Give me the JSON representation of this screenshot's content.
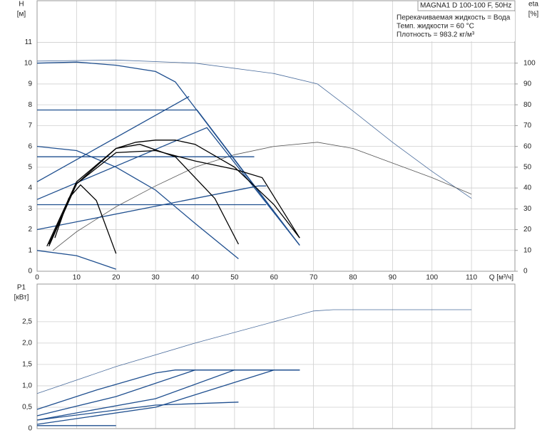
{
  "chart_data": [
    {
      "type": "line",
      "ylabel": "H",
      "ylabel_unit": "[м]",
      "y2label": "eta",
      "y2label_unit": "[%]",
      "xlabel": "Q [м³/ч]",
      "annotations": [
        "MAGNA1 D 100-100 F, 50Hz",
        "Перекачиваемая жидкость = Вода",
        "Темп. жидкости = 60 °C",
        "Плотность = 983.2 кг/м³"
      ],
      "xlim": [
        0,
        121
      ],
      "xticks": [
        0,
        10,
        20,
        30,
        40,
        50,
        60,
        70,
        80,
        90,
        100,
        110
      ],
      "show_xtick_labels": true,
      "ylim": [
        0,
        13
      ],
      "yticks": [
        0,
        1,
        2,
        3,
        4,
        5,
        6,
        7,
        8,
        9,
        10,
        11
      ],
      "y2lim": [
        0,
        130
      ],
      "y2ticks": [
        0,
        10,
        20,
        30,
        40,
        50,
        60,
        70,
        80,
        90,
        100
      ],
      "grid": true,
      "series": [
        {
          "color": "#4a6c9c",
          "width": 0.8,
          "x": [
            0,
            20,
            40,
            60,
            71,
            80,
            90,
            100,
            110
          ],
          "values": [
            10.1,
            10.15,
            10.0,
            9.5,
            9.0,
            7.7,
            6.2,
            4.8,
            3.5
          ]
        },
        {
          "color": "#555555",
          "width": 0.8,
          "axis": "y2",
          "x": [
            4,
            10,
            20,
            30,
            40,
            50,
            60,
            71,
            80,
            90,
            100,
            110
          ],
          "values": [
            10,
            19,
            31,
            41,
            50,
            56,
            60,
            62,
            59,
            52,
            45,
            37
          ]
        },
        {
          "color": "#1f4f8f",
          "width": 1.3,
          "x": [
            0,
            10,
            20,
            30,
            35,
            40,
            45,
            50,
            55,
            60,
            66.5
          ],
          "values": [
            10.0,
            10.05,
            9.9,
            9.6,
            9.1,
            7.85,
            6.6,
            5.35,
            4.1,
            2.85,
            1.25
          ]
        },
        {
          "color": "#1f4f8f",
          "width": 1.3,
          "x": [
            0,
            40.5,
            66.5
          ],
          "values": [
            7.75,
            7.75,
            1.25
          ]
        },
        {
          "color": "#1f4f8f",
          "width": 1.3,
          "x": [
            0,
            38.5
          ],
          "values": [
            4.3,
            8.4
          ]
        },
        {
          "color": "#1f4f8f",
          "width": 1.3,
          "x": [
            0,
            43,
            66.5
          ],
          "values": [
            3.45,
            6.9,
            1.25
          ]
        },
        {
          "color": "#1f4f8f",
          "width": 1.3,
          "x": [
            0,
            56,
            58
          ],
          "values": [
            2.0,
            4.1,
            4.1
          ]
        },
        {
          "color": "#1f4f8f",
          "width": 1.3,
          "x": [
            0,
            55
          ],
          "values": [
            5.5,
            5.5
          ]
        },
        {
          "color": "#1f4f8f",
          "width": 1.3,
          "x": [
            0,
            58
          ],
          "values": [
            3.2,
            3.2
          ]
        },
        {
          "color": "#1f4f8f",
          "width": 1.3,
          "x": [
            0,
            10,
            20,
            30,
            40,
            51
          ],
          "values": [
            6.0,
            5.8,
            5.0,
            3.9,
            2.3,
            0.6
          ]
        },
        {
          "color": "#1f4f8f",
          "width": 1.3,
          "x": [
            0,
            10,
            20
          ],
          "values": [
            1.0,
            0.75,
            0.1
          ]
        },
        {
          "color": "#000000",
          "width": 1.3,
          "x": [
            2.5,
            10,
            20,
            25,
            30,
            35,
            40,
            50,
            60,
            66.5
          ],
          "values": [
            1.2,
            4.3,
            5.9,
            6.2,
            6.3,
            6.3,
            6.1,
            5.0,
            3.2,
            1.6
          ]
        },
        {
          "color": "#000000",
          "width": 1.3,
          "x": [
            3,
            10,
            20,
            26,
            35,
            45,
            51
          ],
          "values": [
            1.3,
            4.2,
            5.9,
            6.1,
            5.5,
            3.5,
            1.3
          ]
        },
        {
          "color": "#000000",
          "width": 1.3,
          "x": [
            4.5,
            8,
            11,
            15,
            20
          ],
          "values": [
            1.6,
            3.5,
            4.15,
            3.4,
            0.85
          ]
        },
        {
          "color": "#000000",
          "width": 1.3,
          "x": [
            3,
            10,
            20,
            30,
            40,
            50,
            57,
            66.5
          ],
          "values": [
            1.2,
            4.2,
            5.7,
            5.8,
            5.3,
            4.9,
            4.5,
            1.6
          ]
        }
      ]
    },
    {
      "type": "line",
      "ylabel": "P1",
      "ylabel_unit": "[кВт]",
      "xlim": [
        0,
        121
      ],
      "xticks": [
        0,
        10,
        20,
        30,
        40,
        50,
        60,
        70,
        80,
        90,
        100,
        110
      ],
      "show_xtick_labels": false,
      "ylim": [
        0,
        3.38
      ],
      "yticks": [
        0,
        {
          "value": 0.5,
          "label": "0,5"
        },
        {
          "value": 1,
          "label": "1,0"
        },
        {
          "value": 1.5,
          "label": "1,5"
        },
        {
          "value": 2,
          "label": "2,0"
        },
        {
          "value": 2.5,
          "label": "2,5"
        }
      ],
      "grid": true,
      "series": [
        {
          "color": "#4a6c9c",
          "width": 0.8,
          "x": [
            0,
            20,
            40,
            60,
            70,
            75,
            110
          ],
          "values": [
            0.82,
            1.45,
            2.0,
            2.5,
            2.75,
            2.78,
            2.78
          ]
        },
        {
          "color": "#1f4f8f",
          "width": 1.3,
          "x": [
            0,
            15,
            30,
            35,
            66.5
          ],
          "values": [
            0.45,
            0.9,
            1.3,
            1.37,
            1.37
          ]
        },
        {
          "color": "#1f4f8f",
          "width": 1.3,
          "x": [
            0,
            20,
            40,
            66.5
          ],
          "values": [
            0.3,
            0.75,
            1.37,
            1.37
          ]
        },
        {
          "color": "#1f4f8f",
          "width": 1.3,
          "x": [
            0,
            30,
            50,
            66.5
          ],
          "values": [
            0.2,
            0.7,
            1.37,
            1.37
          ]
        },
        {
          "color": "#1f4f8f",
          "width": 1.3,
          "x": [
            0,
            30,
            60,
            66.5
          ],
          "values": [
            0.1,
            0.5,
            1.37,
            1.37
          ]
        },
        {
          "color": "#1f4f8f",
          "width": 1.3,
          "x": [
            0,
            30,
            51
          ],
          "values": [
            0.2,
            0.55,
            0.62
          ]
        },
        {
          "color": "#1f4f8f",
          "width": 1.3,
          "x": [
            0,
            20
          ],
          "values": [
            0.07,
            0.07
          ]
        }
      ]
    }
  ]
}
